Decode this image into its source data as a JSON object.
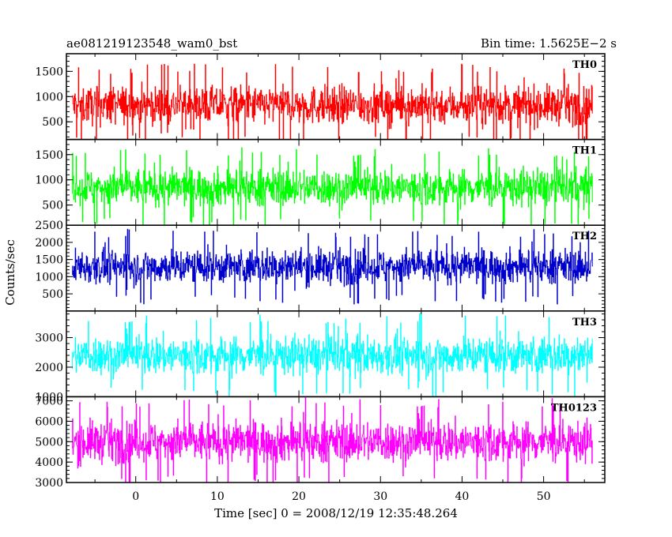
{
  "header": {
    "left_title": "ae081219123548_wam0_bst",
    "right_title": "Bin time: 1.5625E−2 s"
  },
  "chart_data": {
    "type": "line",
    "xlabel": "Time [sec] 0 = 2008/12/19 12:35:48.264",
    "ylabel": "Counts/sec",
    "xlim": [
      -8.5,
      57.5
    ],
    "x_ticks": [
      0,
      10,
      20,
      30,
      40,
      50
    ],
    "data_x_range": [
      -7.8,
      56.0
    ],
    "bin_time_s": 0.015625,
    "grid": false,
    "legend": "none",
    "panels": [
      {
        "name": "TH0",
        "color": "#ff0000",
        "ylim": [
          150,
          1850
        ],
        "yticks": [
          500,
          1000,
          1500
        ],
        "envelope_low": 280,
        "envelope_high": 1650,
        "mean": 830
      },
      {
        "name": "TH1",
        "color": "#00ff00",
        "ylim": [
          100,
          1800
        ],
        "yticks": [
          500,
          1000,
          1500
        ],
        "envelope_low": 300,
        "envelope_high": 1650,
        "mean": 850
      },
      {
        "name": "TH2",
        "color": "#0000cc",
        "ylim": [
          0,
          2500
        ],
        "yticks": [
          500,
          1000,
          1500,
          2000,
          2500
        ],
        "envelope_low": 500,
        "envelope_high": 2350,
        "mean": 1300
      },
      {
        "name": "TH3",
        "color": "#00ffff",
        "ylim": [
          1000,
          3900
        ],
        "yticks": [
          1000,
          2000,
          3000
        ],
        "envelope_low": 1400,
        "envelope_high": 3800,
        "mean": 2400
      },
      {
        "name": "TH0123",
        "color": "#ff00ff",
        "ylim": [
          3000,
          7200
        ],
        "yticks": [
          3000,
          4000,
          5000,
          6000,
          7000
        ],
        "envelope_low": 3300,
        "envelope_high": 7000,
        "mean": 5000
      }
    ]
  }
}
